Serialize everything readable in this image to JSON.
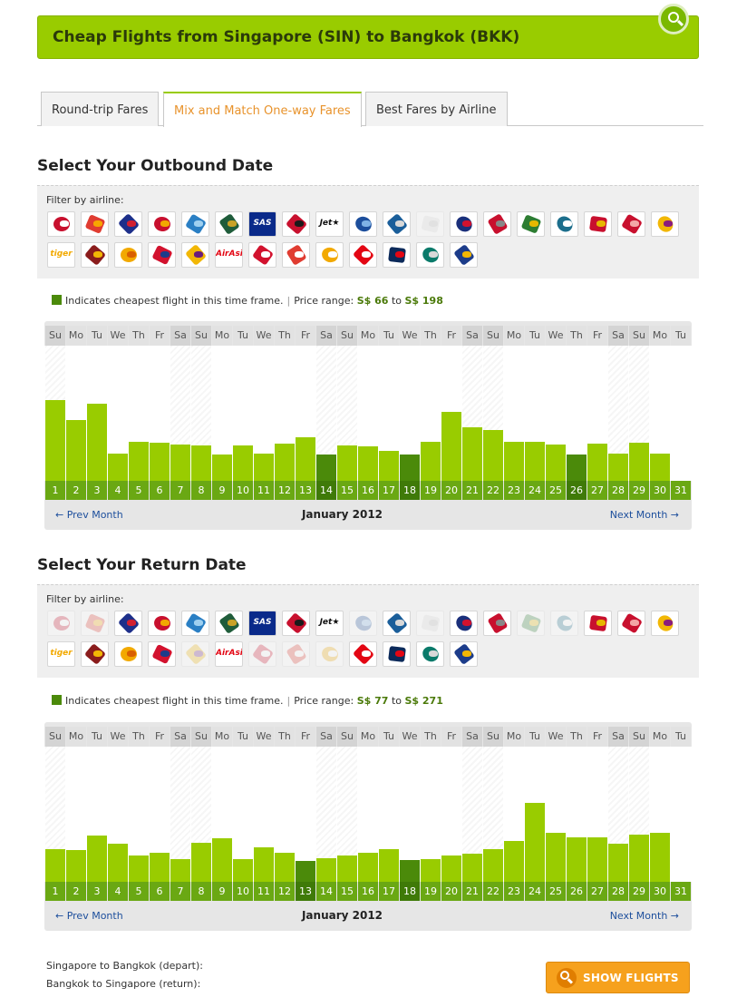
{
  "header": {
    "title": "Cheap Flights from Singapore (SIN) to Bangkok (BKK)",
    "search_icon": "search-icon"
  },
  "tabs": [
    {
      "label": "Round-trip Fares",
      "active": false
    },
    {
      "label": "Mix and Match One-way Fares",
      "active": true
    },
    {
      "label": "Best Fares by Airline",
      "active": false
    }
  ],
  "outbound": {
    "title": "Select Your Outbound Date",
    "filter_label": "Filter by airline:",
    "legend": {
      "text": "Indicates cheapest flight in this time frame.",
      "price_label": "Price range:",
      "min": "S$ 66",
      "to": "to",
      "max": "S$ 198"
    },
    "airlines": [
      {
        "name": "airline-1",
        "dim": false
      },
      {
        "name": "airline-2",
        "dim": false
      },
      {
        "name": "airline-3",
        "dim": false
      },
      {
        "name": "airline-4",
        "dim": false
      },
      {
        "name": "airline-5",
        "dim": false
      },
      {
        "name": "airline-6",
        "dim": false
      },
      {
        "name": "airline-7",
        "dim": false,
        "text": "SAS"
      },
      {
        "name": "airline-8",
        "dim": false
      },
      {
        "name": "airline-9",
        "dim": false,
        "text": "Jet★"
      },
      {
        "name": "airline-10",
        "dim": false
      },
      {
        "name": "airline-11",
        "dim": false
      },
      {
        "name": "airline-12",
        "dim": true
      },
      {
        "name": "airline-13",
        "dim": false
      },
      {
        "name": "airline-14",
        "dim": false
      },
      {
        "name": "airline-15",
        "dim": false
      },
      {
        "name": "airline-16",
        "dim": false
      },
      {
        "name": "airline-17",
        "dim": false
      },
      {
        "name": "airline-18",
        "dim": false
      },
      {
        "name": "airline-19",
        "dim": false
      },
      {
        "name": "airline-20",
        "dim": false,
        "text": "tiger"
      },
      {
        "name": "airline-21",
        "dim": false
      },
      {
        "name": "airline-22",
        "dim": false
      },
      {
        "name": "airline-23",
        "dim": false
      },
      {
        "name": "airline-24",
        "dim": false
      },
      {
        "name": "airline-25",
        "dim": false,
        "text": "AirAsia"
      },
      {
        "name": "airline-26",
        "dim": false
      },
      {
        "name": "airline-27",
        "dim": false
      },
      {
        "name": "airline-28",
        "dim": false
      },
      {
        "name": "airline-29",
        "dim": false
      },
      {
        "name": "airline-30",
        "dim": false
      },
      {
        "name": "airline-31",
        "dim": false
      },
      {
        "name": "airline-32",
        "dim": false
      }
    ],
    "month_label": "January 2012",
    "prev_label": "← Prev Month",
    "next_label": "Next Month →"
  },
  "return": {
    "title": "Select Your Return Date",
    "filter_label": "Filter by airline:",
    "legend": {
      "text": "Indicates cheapest flight in this time frame.",
      "price_label": "Price range:",
      "min": "S$ 77",
      "to": "to",
      "max": "S$ 271"
    },
    "airlines": [
      {
        "name": "airline-1",
        "dim": true
      },
      {
        "name": "airline-2",
        "dim": true
      },
      {
        "name": "airline-3",
        "dim": false
      },
      {
        "name": "airline-4",
        "dim": false
      },
      {
        "name": "airline-5",
        "dim": false
      },
      {
        "name": "airline-6",
        "dim": false
      },
      {
        "name": "airline-7",
        "dim": false,
        "text": "SAS"
      },
      {
        "name": "airline-8",
        "dim": false
      },
      {
        "name": "airline-9",
        "dim": false,
        "text": "Jet★"
      },
      {
        "name": "airline-10",
        "dim": true
      },
      {
        "name": "airline-11",
        "dim": false
      },
      {
        "name": "airline-12",
        "dim": true
      },
      {
        "name": "airline-13",
        "dim": false
      },
      {
        "name": "airline-14",
        "dim": false
      },
      {
        "name": "airline-15",
        "dim": true
      },
      {
        "name": "airline-16",
        "dim": true
      },
      {
        "name": "airline-17",
        "dim": false
      },
      {
        "name": "airline-18",
        "dim": false
      },
      {
        "name": "airline-19",
        "dim": false
      },
      {
        "name": "airline-20",
        "dim": false,
        "text": "tiger"
      },
      {
        "name": "airline-21",
        "dim": false
      },
      {
        "name": "airline-22",
        "dim": false
      },
      {
        "name": "airline-23",
        "dim": false
      },
      {
        "name": "airline-24",
        "dim": true
      },
      {
        "name": "airline-25",
        "dim": false,
        "text": "AirAsia"
      },
      {
        "name": "airline-26",
        "dim": true
      },
      {
        "name": "airline-27",
        "dim": true
      },
      {
        "name": "airline-28",
        "dim": true
      },
      {
        "name": "airline-29",
        "dim": false
      },
      {
        "name": "airline-30",
        "dim": false
      },
      {
        "name": "airline-31",
        "dim": false
      },
      {
        "name": "airline-32",
        "dim": false
      }
    ],
    "month_label": "January 2012",
    "prev_label": "← Prev Month",
    "next_label": "Next Month →"
  },
  "chart_data": [
    {
      "type": "bar",
      "name": "outbound",
      "categories": [
        "1",
        "2",
        "3",
        "4",
        "5",
        "6",
        "7",
        "8",
        "9",
        "10",
        "11",
        "12",
        "13",
        "14",
        "15",
        "16",
        "17",
        "18",
        "19",
        "20",
        "21",
        "22",
        "23",
        "24",
        "25",
        "26",
        "27",
        "28",
        "29",
        "30",
        "31"
      ],
      "weekdays": [
        "Su",
        "Mo",
        "Tu",
        "We",
        "Th",
        "Fr",
        "Sa",
        "Su",
        "Mo",
        "Tu",
        "We",
        "Th",
        "Fr",
        "Sa",
        "Su",
        "Mo",
        "Tu",
        "We",
        "Th",
        "Fr",
        "Sa",
        "Su",
        "Mo",
        "Tu",
        "We",
        "Th",
        "Fr",
        "Sa",
        "Su",
        "Mo",
        "Tu"
      ],
      "values": [
        89,
        67,
        85,
        30,
        43,
        42,
        40,
        39,
        29,
        39,
        30,
        41,
        48,
        29,
        39,
        38,
        33,
        29,
        43,
        76,
        59,
        56,
        43,
        43,
        40,
        29,
        41,
        30,
        42,
        30,
        0
      ],
      "cheapest": [
        false,
        false,
        false,
        false,
        false,
        false,
        false,
        false,
        false,
        false,
        false,
        false,
        false,
        true,
        false,
        false,
        false,
        true,
        false,
        false,
        false,
        false,
        false,
        false,
        false,
        true,
        false,
        false,
        false,
        false,
        false
      ],
      "weekend": [
        true,
        false,
        false,
        false,
        false,
        false,
        true,
        true,
        false,
        false,
        false,
        false,
        false,
        true,
        true,
        false,
        false,
        false,
        false,
        false,
        true,
        true,
        false,
        false,
        false,
        false,
        false,
        true,
        true,
        false,
        false
      ],
      "ylim": [
        0,
        149
      ]
    },
    {
      "type": "bar",
      "name": "return",
      "categories": [
        "1",
        "2",
        "3",
        "4",
        "5",
        "6",
        "7",
        "8",
        "9",
        "10",
        "11",
        "12",
        "13",
        "14",
        "15",
        "16",
        "17",
        "18",
        "19",
        "20",
        "21",
        "22",
        "23",
        "24",
        "25",
        "26",
        "27",
        "28",
        "29",
        "30",
        "31"
      ],
      "weekdays": [
        "Su",
        "Mo",
        "Tu",
        "We",
        "Th",
        "Fr",
        "Sa",
        "Su",
        "Mo",
        "Tu",
        "We",
        "Th",
        "Fr",
        "Sa",
        "Su",
        "Mo",
        "Tu",
        "We",
        "Th",
        "Fr",
        "Sa",
        "Su",
        "Mo",
        "Tu",
        "We",
        "Th",
        "Fr",
        "Sa",
        "Su",
        "Mo",
        "Tu"
      ],
      "values": [
        36,
        35,
        51,
        42,
        29,
        32,
        25,
        43,
        48,
        25,
        38,
        32,
        23,
        26,
        29,
        32,
        36,
        24,
        25,
        29,
        31,
        36,
        45,
        87,
        54,
        49,
        49,
        42,
        52,
        54,
        0
      ],
      "cheapest": [
        false,
        false,
        false,
        false,
        false,
        false,
        false,
        false,
        false,
        false,
        false,
        false,
        true,
        false,
        false,
        false,
        false,
        true,
        false,
        false,
        false,
        false,
        false,
        false,
        false,
        false,
        false,
        false,
        false,
        false,
        false
      ],
      "weekend": [
        true,
        false,
        false,
        false,
        false,
        false,
        true,
        true,
        false,
        false,
        false,
        false,
        false,
        true,
        true,
        false,
        false,
        false,
        false,
        false,
        true,
        true,
        false,
        false,
        false,
        false,
        false,
        true,
        true,
        false,
        false
      ],
      "ylim": [
        0,
        149
      ]
    }
  ],
  "summary": {
    "depart": "Singapore to Bangkok (depart):",
    "return": "Bangkok to Singapore (return):"
  },
  "button": {
    "label": "SHOW FLIGHTS",
    "icon": "search-icon"
  }
}
